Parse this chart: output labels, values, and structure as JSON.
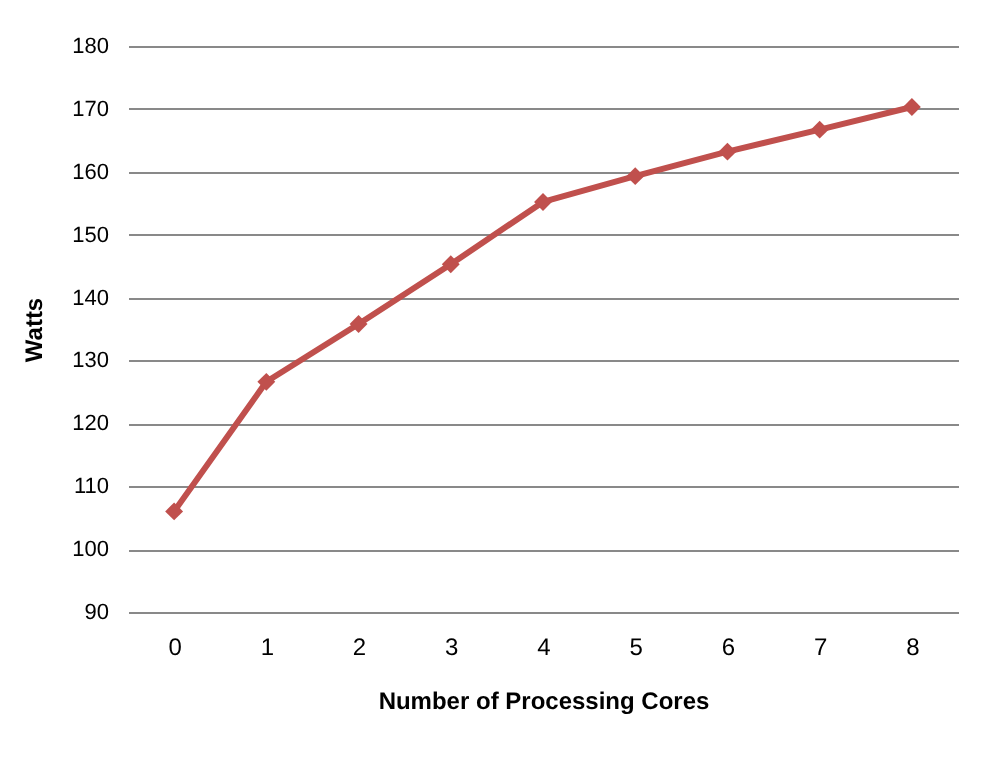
{
  "chart_data": {
    "type": "line",
    "xlabel": "Number of Processing Cores",
    "ylabel": "Watts",
    "categories": [
      "0",
      "1",
      "2",
      "3",
      "4",
      "5",
      "6",
      "7",
      "8"
    ],
    "series": [
      {
        "color": "#c0504d",
        "values": [
          106,
          126.6,
          135.8,
          145.3,
          155.2,
          159.3,
          163.2,
          166.7,
          170.3
        ]
      }
    ],
    "ylim": [
      90,
      180
    ],
    "yticks": [
      90,
      100,
      110,
      120,
      130,
      140,
      150,
      160,
      170,
      180
    ],
    "grid": "y",
    "marker": "diamond",
    "line_style": "solid"
  }
}
